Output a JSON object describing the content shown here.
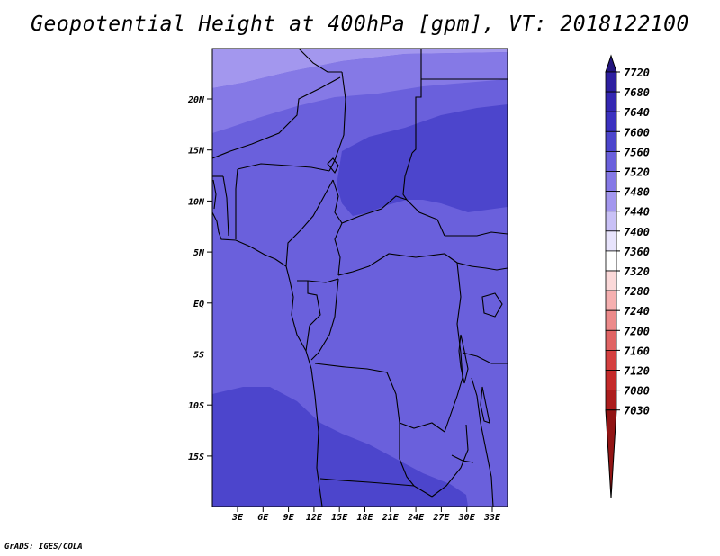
{
  "title": "Geopotential Height at 400hPa [gpm], VT: 2018122100",
  "footer": "GrADS: IGES/COLA",
  "map": {
    "lat_labels": [
      "20N",
      "15N",
      "10N",
      "5N",
      "EQ",
      "5S",
      "10S",
      "15S"
    ],
    "lon_labels": [
      "3E",
      "6E",
      "9E",
      "12E",
      "15E",
      "18E",
      "21E",
      "24E",
      "27E",
      "30E",
      "33E"
    ]
  },
  "colorbar": {
    "levels": [
      "7720",
      "7680",
      "7640",
      "7600",
      "7560",
      "7520",
      "7480",
      "7440",
      "7400",
      "7360",
      "7320",
      "7280",
      "7240",
      "7200",
      "7160",
      "7120",
      "7080",
      "7030"
    ],
    "colors": [
      "#23157e",
      "#2d1fa0",
      "#3427b2",
      "#3b31c0",
      "#4c45cc",
      "#6a60dc",
      "#8579e6",
      "#a397ee",
      "#c9c1f6",
      "#e8e4fc",
      "#ffffff",
      "#fbd9d9",
      "#f5b0b0",
      "#ec8a8a",
      "#e06464",
      "#d44040",
      "#c42a2a",
      "#ac1d1d",
      "#921414"
    ]
  },
  "colors": {
    "z_7560_7600": "#4c45cc",
    "z_7520_7560": "#6a60dc",
    "z_7480_7520": "#8579e6",
    "z_7440_7480": "#a397ee",
    "boundary": "#000000"
  }
}
